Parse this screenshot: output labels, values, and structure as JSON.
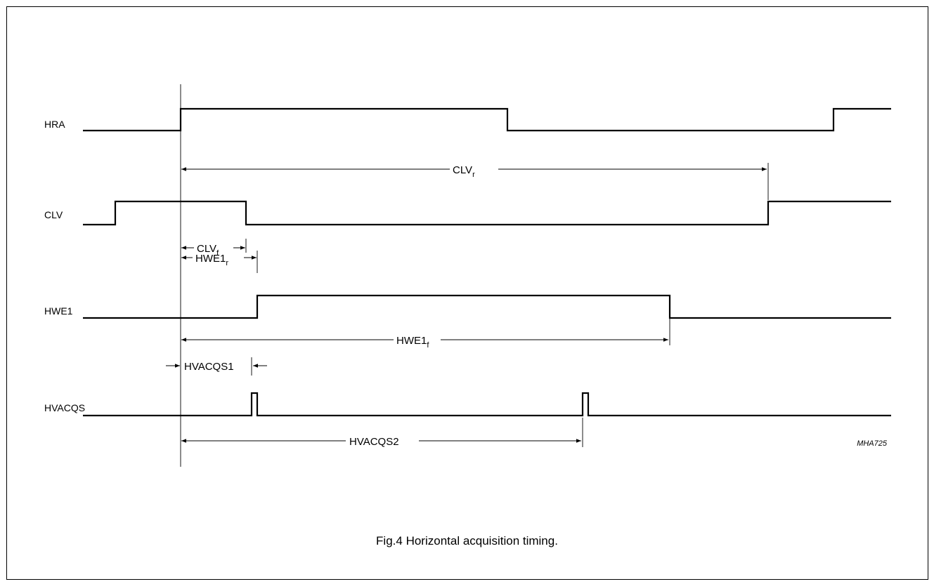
{
  "signals": {
    "hra": "HRA",
    "clv": "CLV",
    "hwe1": "HWE1",
    "hvacqs": "HVACQS"
  },
  "timings": {
    "clv_r": {
      "base": "CLV",
      "sub": "r"
    },
    "clv_f": {
      "base": "CLV",
      "sub": "f"
    },
    "hwe1_r": {
      "base": "HWE1",
      "sub": "r"
    },
    "hwe1_f": {
      "base": "HWE1",
      "sub": "f"
    },
    "hvacqs1": "HVACQS1",
    "hvacqs2": "HVACQS2"
  },
  "code": "MHA725",
  "caption": "Fig.4  Horizontal acquisition timing."
}
